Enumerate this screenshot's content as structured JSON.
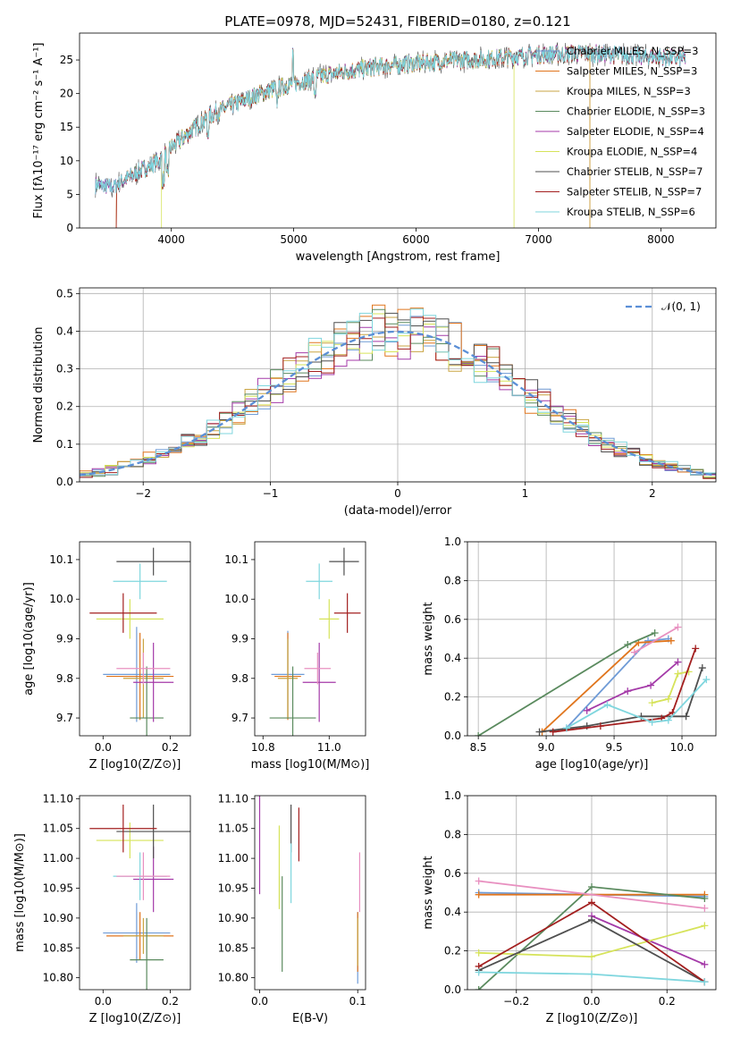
{
  "figure_title": "PLATE=0978, MJD=52431, FIBERID=0180, z=0.121",
  "colors": [
    "#6f9bd6",
    "#e0751d",
    "#caa544",
    "#5a8a5e",
    "#a43aa8",
    "#d6e35a",
    "#4f4f4f",
    "#a31f1f",
    "#7fd6de",
    "#e890c0"
  ],
  "chart_data": [
    {
      "id": "spectrum",
      "type": "line",
      "xlabel": "wavelength [Angstrom, rest frame]",
      "ylabel": "Flux [fλ10⁻¹⁷ erg cm⁻² s⁻¹ A⁻¹]",
      "xlim": [
        3250,
        8450
      ],
      "ylim": [
        0,
        29
      ],
      "xticks": [
        4000,
        5000,
        6000,
        7000,
        8000
      ],
      "yticks": [
        0,
        5,
        10,
        15,
        20,
        25
      ],
      "grid": false,
      "legend": "top-right",
      "legend_entries": [
        "Chabrier MILES, N_SSP=3",
        "Salpeter MILES, N_SSP=3",
        "Kroupa MILES, N_SSP=3",
        "Chabrier ELODIE, N_SSP=3",
        "Salpeter ELODIE, N_SSP=4",
        "Kroupa ELODIE, N_SSP=4",
        "Chabrier STELIB, N_SSP=7",
        "Salpeter STELIB, N_SSP=7",
        "Kroupa STELIB, N_SSP=6"
      ],
      "continuum": {
        "x": [
          3380,
          3500,
          3600,
          3700,
          3800,
          3900,
          4000,
          4100,
          4200,
          4300,
          4400,
          4600,
          4800,
          5000,
          5200,
          5400,
          5600,
          5800,
          6000,
          6200,
          6400,
          6600,
          6800,
          7000,
          7200,
          7400,
          7600,
          7800,
          8000,
          8200,
          8300
        ],
        "y": [
          6.5,
          6,
          7,
          8,
          9,
          10,
          12,
          13.5,
          15,
          16.5,
          17.5,
          19,
          20.5,
          21.5,
          22.5,
          23.2,
          23.8,
          24.2,
          24.5,
          24.8,
          25,
          25.2,
          25.5,
          25.8,
          25.9,
          26,
          25.8,
          25.6,
          25.4,
          25.2,
          25
        ]
      },
      "range_ends": [
        {
          "x0": 3380,
          "x1": 8200
        },
        {
          "x0": 3550,
          "x1": 7420
        },
        {
          "x0": 3550,
          "x1": 7420
        },
        {
          "x0": 3380,
          "x1": 8200
        },
        {
          "x0": 3380,
          "x1": 8200
        },
        {
          "x0": 3920,
          "x1": 6800
        },
        {
          "x0": 3380,
          "x1": 8200
        },
        {
          "x0": 3550,
          "x1": 8200
        },
        {
          "x0": 3380,
          "x1": 8200
        }
      ]
    },
    {
      "id": "residuals",
      "type": "histogram",
      "xlabel": "(data-model)/error",
      "ylabel": "Normed distribution",
      "xlim": [
        -2.5,
        2.5
      ],
      "ylim": [
        0,
        0.515
      ],
      "xticks": [
        -2,
        -1,
        0,
        1,
        2
      ],
      "yticks": [
        0.0,
        0.1,
        0.2,
        0.3,
        0.4,
        0.5
      ],
      "grid": true,
      "legend": "top-right",
      "legend_label": "𝒩(0, 1)",
      "bin_width": 0.1
    },
    {
      "id": "age-vs-Z",
      "type": "errorbar",
      "xlabel": "Z [log10(Z/Z⊙)]",
      "ylabel": "age  [log10(age/yr)]",
      "xlim": [
        -0.07,
        0.26
      ],
      "ylim": [
        9.655,
        10.145
      ],
      "xticks": [
        0.0,
        0.2
      ],
      "yticks": [
        9.7,
        9.8,
        9.9,
        10.0,
        10.1
      ],
      "points": [
        {
          "series": 0,
          "x": 0.1,
          "xerr": 0.1,
          "y": 9.81,
          "yerr": 0.12
        },
        {
          "series": 1,
          "x": 0.11,
          "xerr": 0.1,
          "y": 9.805,
          "yerr": 0.11
        },
        {
          "series": 2,
          "x": 0.12,
          "xerr": 0.06,
          "y": 9.8,
          "yerr": 0.1
        },
        {
          "series": 3,
          "x": 0.13,
          "xerr": 0.05,
          "y": 9.7,
          "yerr": 0.13
        },
        {
          "series": 4,
          "x": 0.15,
          "xerr": 0.06,
          "y": 9.79,
          "yerr": 0.1
        },
        {
          "series": 5,
          "x": 0.08,
          "xerr": 0.1,
          "y": 9.95,
          "yerr": 0.05
        },
        {
          "series": 6,
          "x": 0.15,
          "xerr": 0.11,
          "y": 10.095,
          "yerr": 0.035
        },
        {
          "series": 7,
          "x": 0.06,
          "xerr": 0.1,
          "y": 9.965,
          "yerr": 0.05
        },
        {
          "series": 8,
          "x": 0.11,
          "xerr": 0.08,
          "y": 10.045,
          "yerr": 0.045
        },
        {
          "series": 9,
          "x": 0.12,
          "xerr": 0.08,
          "y": 9.825,
          "yerr": 0.04
        }
      ]
    },
    {
      "id": "age-vs-mass",
      "type": "errorbar",
      "xlabel": "mass [log10(M/M⊙)]",
      "ylabel": "",
      "xlim": [
        10.775,
        11.11
      ],
      "ylim": [
        9.655,
        10.145
      ],
      "xticks": [
        10.8,
        11.0
      ],
      "yticks": [
        9.7,
        9.8,
        9.9,
        10.0,
        10.1
      ],
      "points": [
        {
          "series": 0,
          "x": 10.875,
          "xerr": 0.05,
          "y": 9.81,
          "yerr": 0.11
        },
        {
          "series": 1,
          "x": 10.875,
          "xerr": 0.04,
          "y": 9.805,
          "yerr": 0.11
        },
        {
          "series": 2,
          "x": 10.875,
          "xerr": 0.03,
          "y": 9.8,
          "yerr": 0.1
        },
        {
          "series": 3,
          "x": 10.89,
          "xerr": 0.07,
          "y": 9.7,
          "yerr": 0.13
        },
        {
          "series": 4,
          "x": 10.97,
          "xerr": 0.05,
          "y": 9.79,
          "yerr": 0.1
        },
        {
          "series": 5,
          "x": 11.0,
          "xerr": 0.03,
          "y": 9.95,
          "yerr": 0.05
        },
        {
          "series": 6,
          "x": 11.045,
          "xerr": 0.045,
          "y": 10.095,
          "yerr": 0.035
        },
        {
          "series": 7,
          "x": 11.055,
          "xerr": 0.04,
          "y": 9.965,
          "yerr": 0.05
        },
        {
          "series": 8,
          "x": 10.97,
          "xerr": 0.04,
          "y": 10.045,
          "yerr": 0.045
        },
        {
          "series": 9,
          "x": 10.965,
          "xerr": 0.04,
          "y": 9.825,
          "yerr": 0.04
        }
      ]
    },
    {
      "id": "mass-weight-vs-age",
      "type": "line",
      "xlabel": "age  [log10(age/yr)]",
      "ylabel": "mass weight",
      "xlim": [
        8.42,
        10.25
      ],
      "ylim": [
        0,
        1
      ],
      "xticks": [
        8.5,
        9.0,
        9.5,
        10.0
      ],
      "yticks": [
        0.0,
        0.2,
        0.4,
        0.6,
        0.8,
        1.0
      ],
      "grid": true,
      "series": [
        {
          "series": 0,
          "x": [
            9.15,
            9.75,
            9.9
          ],
          "y": [
            0.04,
            0.49,
            0.5
          ]
        },
        {
          "series": 1,
          "x": [
            8.97,
            9.68,
            9.92
          ],
          "y": [
            0.02,
            0.48,
            0.49
          ]
        },
        {
          "series": 3,
          "x": [
            8.5,
            9.6,
            9.8
          ],
          "y": [
            0.0,
            0.47,
            0.53
          ]
        },
        {
          "series": 4,
          "x": [
            9.3,
            9.6,
            9.77,
            9.97
          ],
          "y": [
            0.13,
            0.23,
            0.26,
            0.38
          ]
        },
        {
          "series": 5,
          "x": [
            9.78,
            9.9,
            9.97,
            10.05
          ],
          "y": [
            0.17,
            0.19,
            0.32,
            0.33
          ]
        },
        {
          "series": 6,
          "x": [
            8.95,
            9.3,
            9.7,
            10.03,
            10.15
          ],
          "y": [
            0.02,
            0.05,
            0.1,
            0.1,
            0.35
          ]
        },
        {
          "series": 7,
          "x": [
            9.05,
            9.4,
            9.85,
            9.93,
            10.1
          ],
          "y": [
            0.02,
            0.05,
            0.09,
            0.12,
            0.45
          ]
        },
        {
          "series": 8,
          "x": [
            9.15,
            9.45,
            9.78,
            9.9,
            10.18
          ],
          "y": [
            0.04,
            0.16,
            0.07,
            0.08,
            0.29
          ]
        },
        {
          "series": 9,
          "x": [
            9.65,
            9.97
          ],
          "y": [
            0.43,
            0.56
          ]
        }
      ]
    },
    {
      "id": "mass-vs-Z",
      "type": "errorbar",
      "xlabel": "Z [log10(Z/Z⊙)]",
      "ylabel": "mass [log10(M/M⊙)]",
      "xlim": [
        -0.07,
        0.26
      ],
      "ylim": [
        10.78,
        11.105
      ],
      "xticks": [
        0.0,
        0.2
      ],
      "yticks": [
        10.8,
        10.85,
        10.9,
        10.95,
        11.0,
        11.05,
        11.1
      ],
      "points": [
        {
          "series": 0,
          "x": 0.1,
          "xerr": 0.1,
          "y": 10.875,
          "yerr": 0.05
        },
        {
          "series": 1,
          "x": 0.11,
          "xerr": 0.1,
          "y": 10.87,
          "yerr": 0.04
        },
        {
          "series": 2,
          "x": 0.12,
          "xerr": 0.06,
          "y": 10.87,
          "yerr": 0.03
        },
        {
          "series": 3,
          "x": 0.13,
          "xerr": 0.05,
          "y": 10.83,
          "yerr": 0.07
        },
        {
          "series": 4,
          "x": 0.15,
          "xerr": 0.06,
          "y": 10.965,
          "yerr": 0.055
        },
        {
          "series": 5,
          "x": 0.08,
          "xerr": 0.1,
          "y": 11.03,
          "yerr": 0.03
        },
        {
          "series": 6,
          "x": 0.15,
          "xerr": 0.11,
          "y": 11.045,
          "yerr": 0.045
        },
        {
          "series": 7,
          "x": 0.06,
          "xerr": 0.1,
          "y": 11.05,
          "yerr": 0.04
        },
        {
          "series": 8,
          "x": 0.11,
          "xerr": 0.08,
          "y": 10.97,
          "yerr": 0.04
        },
        {
          "series": 9,
          "x": 0.12,
          "xerr": 0.08,
          "y": 10.97,
          "yerr": 0.04
        }
      ]
    },
    {
      "id": "mass-vs-EBV",
      "type": "errorbar",
      "xlabel": "E(B-V)",
      "ylabel": "",
      "xlim": [
        -0.005,
        0.108
      ],
      "ylim": [
        10.78,
        11.105
      ],
      "xticks": [
        0.0,
        0.1
      ],
      "yticks": [
        10.8,
        10.85,
        10.9,
        10.95,
        11.0,
        11.05,
        11.1
      ],
      "points": [
        {
          "series": 0,
          "x": 0.1,
          "xerr": 0,
          "y": 10.85,
          "yerr": 0.06
        },
        {
          "series": 1,
          "x": 0.1,
          "xerr": 0,
          "y": 10.86,
          "yerr": 0.05
        },
        {
          "series": 2,
          "x": 0.1,
          "xerr": 0,
          "y": 10.86,
          "yerr": 0.04
        },
        {
          "series": 3,
          "x": 0.023,
          "xerr": 0,
          "y": 10.89,
          "yerr": 0.08
        },
        {
          "series": 4,
          "x": 0.0,
          "xerr": 0,
          "y": 11.03,
          "yerr": 0.09
        },
        {
          "series": 5,
          "x": 0.02,
          "xerr": 0,
          "y": 10.985,
          "yerr": 0.07
        },
        {
          "series": 6,
          "x": 0.032,
          "xerr": 0,
          "y": 11.05,
          "yerr": 0.04
        },
        {
          "series": 7,
          "x": 0.04,
          "xerr": 0,
          "y": 11.04,
          "yerr": 0.045
        },
        {
          "series": 8,
          "x": 0.032,
          "xerr": 0,
          "y": 10.975,
          "yerr": 0.05
        },
        {
          "series": 9,
          "x": 0.102,
          "xerr": 0,
          "y": 10.96,
          "yerr": 0.05
        }
      ]
    },
    {
      "id": "mass-weight-vs-Z",
      "type": "line",
      "xlabel": "Z [log10(Z/Z⊙)]",
      "ylabel": "mass weight",
      "xlim": [
        -0.33,
        0.33
      ],
      "ylim": [
        0,
        1
      ],
      "xticks": [
        -0.2,
        0.0,
        0.2
      ],
      "yticks": [
        0.0,
        0.2,
        0.4,
        0.6,
        0.8,
        1.0
      ],
      "grid": true,
      "series": [
        {
          "series": 0,
          "x": [
            -0.3,
            0.3
          ],
          "y": [
            0.5,
            0.48
          ]
        },
        {
          "series": 1,
          "x": [
            -0.3,
            0.3
          ],
          "y": [
            0.49,
            0.49
          ]
        },
        {
          "series": 3,
          "x": [
            -0.3,
            0.0,
            0.3
          ],
          "y": [
            0.0,
            0.53,
            0.47
          ]
        },
        {
          "series": 4,
          "x": [
            0.0,
            0.3
          ],
          "y": [
            0.38,
            0.13
          ]
        },
        {
          "series": 5,
          "x": [
            -0.3,
            0.0,
            0.3
          ],
          "y": [
            0.19,
            0.17,
            0.33
          ]
        },
        {
          "series": 6,
          "x": [
            -0.3,
            0.0,
            0.3
          ],
          "y": [
            0.1,
            0.36,
            0.04
          ]
        },
        {
          "series": 7,
          "x": [
            -0.3,
            0.0,
            0.3
          ],
          "y": [
            0.12,
            0.45,
            0.04
          ]
        },
        {
          "series": 8,
          "x": [
            -0.3,
            0.0,
            0.3
          ],
          "y": [
            0.09,
            0.08,
            0.04
          ]
        },
        {
          "series": 9,
          "x": [
            -0.3,
            0.3
          ],
          "y": [
            0.56,
            0.42
          ]
        }
      ]
    }
  ]
}
